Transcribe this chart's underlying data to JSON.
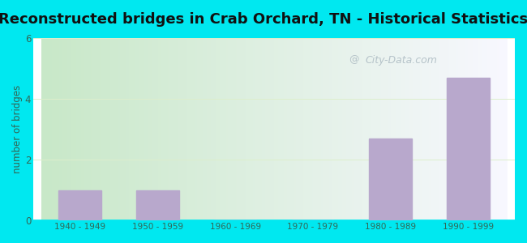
{
  "title": "Reconstructed bridges in Crab Orchard, TN - Historical Statistics",
  "categories": [
    "1940 - 1949",
    "1950 - 1959",
    "1960 - 1969",
    "1970 - 1979",
    "1980 - 1989",
    "1990 - 1999"
  ],
  "values": [
    1,
    1,
    0,
    0,
    2.7,
    4.7
  ],
  "bar_color": "#b8a8cc",
  "ylabel": "number of bridges",
  "ylim": [
    0,
    6
  ],
  "yticks": [
    0,
    2,
    4,
    6
  ],
  "outer_bg_color": "#00e8f0",
  "plot_bg_color_left": "#c8e8c8",
  "plot_bg_color_right": "#f8f8ff",
  "title_fontsize": 13,
  "title_color": "#111111",
  "axis_color": "#336655",
  "tick_color": "#336655",
  "watermark_text": "City-Data.com",
  "watermark_color": "#b0bec5",
  "grid_color": "#ddeecc",
  "bar_width": 0.55
}
